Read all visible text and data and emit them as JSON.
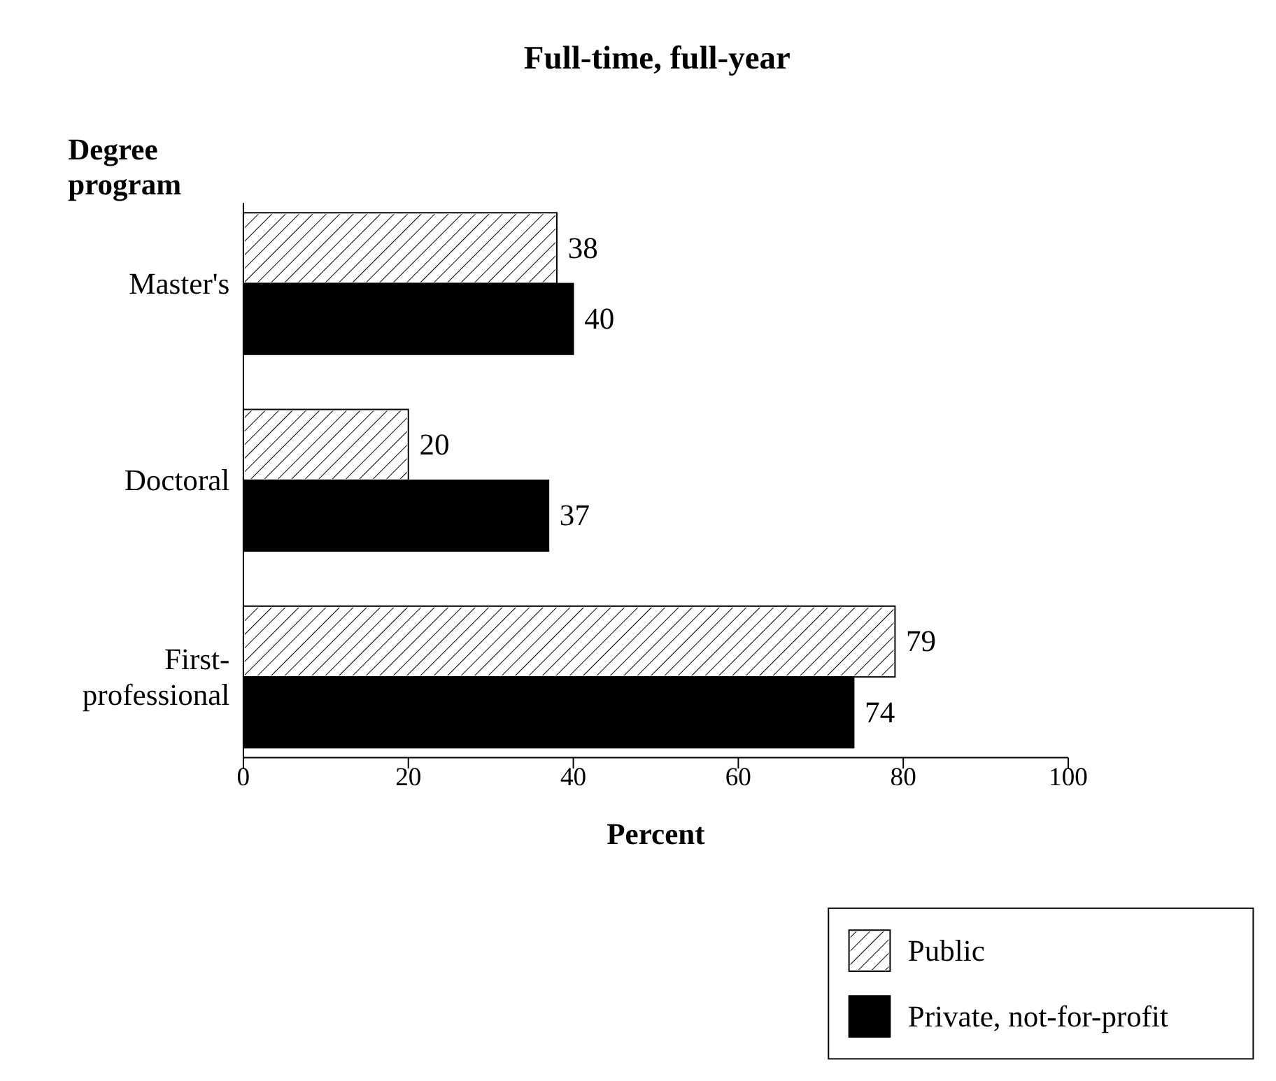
{
  "chart_data": {
    "type": "bar",
    "orientation": "horizontal",
    "title": "Full-time, full-year",
    "xlabel": "Percent",
    "ylabel": "Degree program",
    "categories": [
      "Master's",
      "Doctoral",
      "First-professional"
    ],
    "series": [
      {
        "name": "Public",
        "color": "#ffffff",
        "values": [
          38,
          20,
          79
        ]
      },
      {
        "name": "Private, not-for-profit",
        "color": "#000000",
        "values": [
          40,
          37,
          74
        ]
      }
    ],
    "xlim": [
      0,
      100
    ],
    "xticks": [
      0,
      20,
      40,
      60,
      80,
      100
    ],
    "data_labels": true,
    "legend": "bottom right",
    "grid": false
  }
}
